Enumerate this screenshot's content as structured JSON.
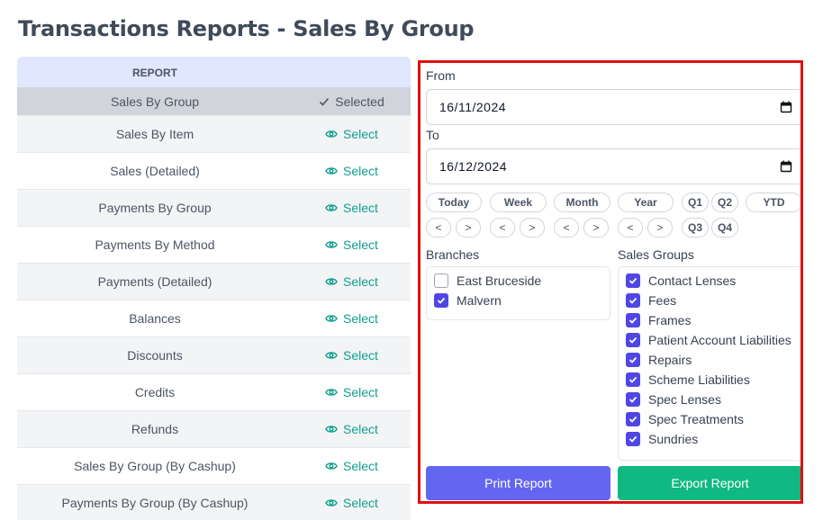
{
  "page": {
    "title": "Transactions Reports - Sales By Group"
  },
  "report_table": {
    "header": "REPORT",
    "rows": [
      {
        "name": "Sales By Group",
        "action": "Selected",
        "selected": true
      },
      {
        "name": "Sales By Item",
        "action": "Select"
      },
      {
        "name": "Sales (Detailed)",
        "action": "Select"
      },
      {
        "name": "Payments By Group",
        "action": "Select"
      },
      {
        "name": "Payments By Method",
        "action": "Select"
      },
      {
        "name": "Payments (Detailed)",
        "action": "Select"
      },
      {
        "name": "Balances",
        "action": "Select"
      },
      {
        "name": "Discounts",
        "action": "Select"
      },
      {
        "name": "Credits",
        "action": "Select"
      },
      {
        "name": "Refunds",
        "action": "Select"
      },
      {
        "name": "Sales By Group (By Cashup)",
        "action": "Select"
      },
      {
        "name": "Payments By Group (By Cashup)",
        "action": "Select"
      }
    ]
  },
  "filters": {
    "from_label": "From",
    "from_value": "16/11/2024",
    "to_label": "To",
    "to_value": "16/12/2024",
    "period_buttons": {
      "today": "Today",
      "week": "Week",
      "month": "Month",
      "year": "Year",
      "q1": "Q1",
      "q2": "Q2",
      "q3": "Q3",
      "q4": "Q4",
      "ytd": "YTD",
      "prev": "<",
      "next": ">"
    },
    "branches_label": "Branches",
    "branches": [
      {
        "label": "East Bruceside",
        "checked": false
      },
      {
        "label": "Malvern",
        "checked": true
      }
    ],
    "sales_groups_label": "Sales Groups",
    "sales_groups": [
      {
        "label": "Contact Lenses",
        "checked": true
      },
      {
        "label": "Fees",
        "checked": true
      },
      {
        "label": "Frames",
        "checked": true
      },
      {
        "label": "Patient Account Liabilities",
        "checked": true
      },
      {
        "label": "Repairs",
        "checked": true
      },
      {
        "label": "Scheme Liabilities",
        "checked": true
      },
      {
        "label": "Spec Lenses",
        "checked": true
      },
      {
        "label": "Spec Treatments",
        "checked": true
      },
      {
        "label": "Sundries",
        "checked": true
      }
    ],
    "print_label": "Print Report",
    "export_label": "Export Report"
  },
  "colors": {
    "accent_indigo": "#6366f1",
    "accent_green": "#10b981",
    "select_link": "#0f9f8f",
    "highlight_border": "#e01010"
  }
}
